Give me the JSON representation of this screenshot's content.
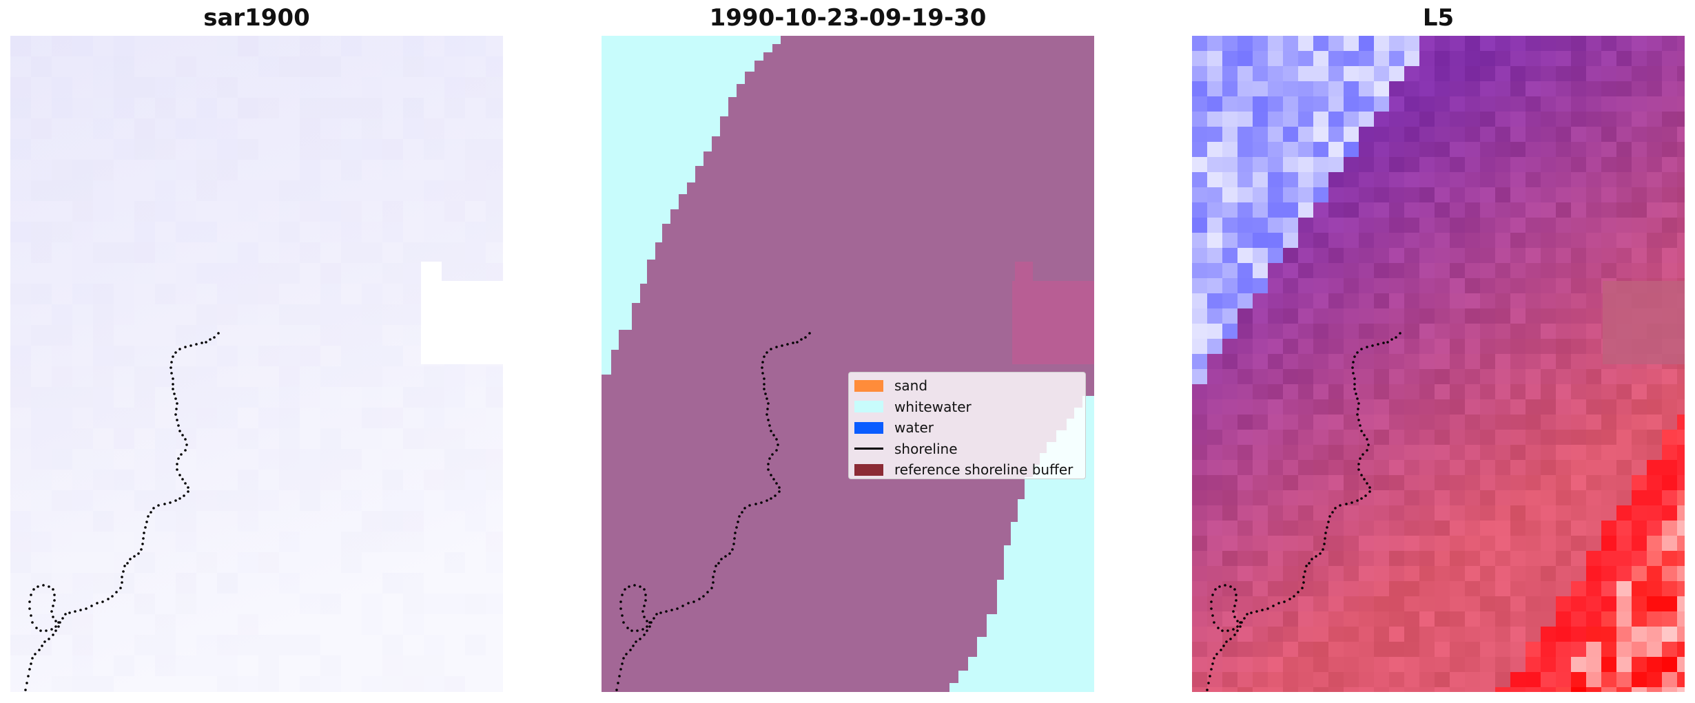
{
  "panels": [
    {
      "title": "sar1900"
    },
    {
      "title": "1990-10-23-09-19-30"
    },
    {
      "title": "L5"
    }
  ],
  "legend": {
    "items": [
      {
        "label": "sand",
        "color": "#ff8c3a",
        "kind": "patch"
      },
      {
        "label": "whitewater",
        "color": "#c8fcfc",
        "kind": "patch"
      },
      {
        "label": "water",
        "color": "#0a5cff",
        "kind": "patch"
      },
      {
        "label": "shoreline",
        "color": "#000000",
        "kind": "line"
      },
      {
        "label": "reference shoreline buffer",
        "color": "#8b2b35",
        "kind": "patch"
      }
    ]
  },
  "colors": {
    "buffer_overlay": "#a36796",
    "whitewater": "#c8fcfc",
    "sar_tint": "#ecebfc",
    "l5_water": "#6f6ff8",
    "l5_land": "#8a3f98",
    "l5_sand": "#ff1a1a"
  }
}
